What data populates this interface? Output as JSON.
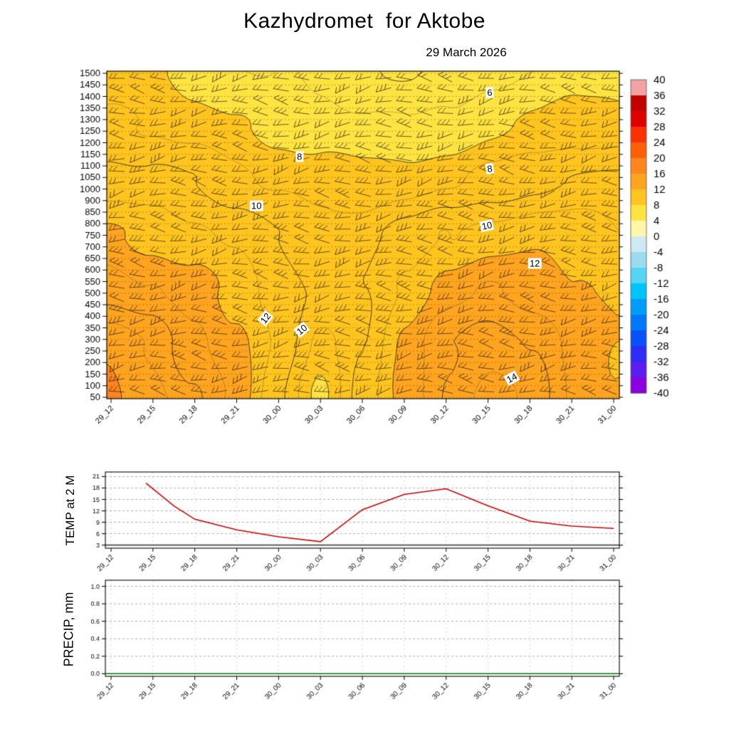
{
  "title": "Kazhydromet  for Aktobe",
  "subtitle": "29 March 2026",
  "chart_data": [
    {
      "type": "heatmap",
      "name": "wind-temperature-time-height-section",
      "x_ticklabels": [
        "29_12",
        "29_15",
        "29_18",
        "29_21",
        "30_00",
        "30_03",
        "30_06",
        "30_09",
        "30_12",
        "30_15",
        "30_18",
        "30_21",
        "31_00"
      ],
      "y_ticklabels": [
        "1500",
        "1450",
        "1400",
        "1350",
        "1300",
        "1250",
        "1200",
        "1150",
        "1100",
        "1050",
        "1000",
        "900",
        "850",
        "800",
        "750",
        "700",
        "650",
        "600",
        "550",
        "500",
        "450",
        "400",
        "350",
        "300",
        "250",
        "200",
        "150",
        "100",
        "50"
      ],
      "colorbar": {
        "ticks": [
          40,
          36,
          32,
          28,
          24,
          20,
          16,
          12,
          8,
          4,
          0,
          -4,
          -8,
          -12,
          -16,
          -20,
          -24,
          -28,
          -32,
          -36,
          -40
        ],
        "palette": [
          {
            "min": -40,
            "color": "#8a00e0"
          },
          {
            "min": -36,
            "color": "#5a1ef0"
          },
          {
            "min": -32,
            "color": "#2d2df5"
          },
          {
            "min": -28,
            "color": "#0a50fa"
          },
          {
            "min": -24,
            "color": "#0078fa"
          },
          {
            "min": -20,
            "color": "#009cfa"
          },
          {
            "min": -16,
            "color": "#00c3fa"
          },
          {
            "min": -12,
            "color": "#55d5f5"
          },
          {
            "min": -8,
            "color": "#9adcee"
          },
          {
            "min": -4,
            "color": "#cfe9f2"
          },
          {
            "min": 0,
            "color": "#fff6aa"
          },
          {
            "min": 4,
            "color": "#ffe341"
          },
          {
            "min": 8,
            "color": "#ffc41e"
          },
          {
            "min": 12,
            "color": "#ffa41e"
          },
          {
            "min": 16,
            "color": "#ff861e"
          },
          {
            "min": 20,
            "color": "#ff5f05"
          },
          {
            "min": 24,
            "color": "#fa3200"
          },
          {
            "min": 28,
            "color": "#e10000"
          },
          {
            "min": 32,
            "color": "#c30000"
          },
          {
            "min": 36,
            "color": "#f2a2a2"
          }
        ]
      },
      "contour_interval": 1,
      "labeled_contours": [
        6,
        8,
        10,
        12,
        14
      ],
      "contour_labels": [
        {
          "text": "6",
          "fx": 0.747,
          "fy": 0.065,
          "rot": 0
        },
        {
          "text": "8",
          "fx": 0.376,
          "fy": 0.26,
          "rot": 0
        },
        {
          "text": "8",
          "fx": 0.747,
          "fy": 0.298,
          "rot": -8
        },
        {
          "text": "10",
          "fx": 0.292,
          "fy": 0.41,
          "rot": 0
        },
        {
          "text": "10",
          "fx": 0.742,
          "fy": 0.472,
          "rot": -12
        },
        {
          "text": "12",
          "fx": 0.835,
          "fy": 0.587,
          "rot": 0
        },
        {
          "text": "12",
          "fx": 0.31,
          "fy": 0.755,
          "rot": -52
        },
        {
          "text": "10",
          "fx": 0.38,
          "fy": 0.79,
          "rot": -38
        },
        {
          "text": "14",
          "fx": 0.79,
          "fy": 0.936,
          "rot": -28
        }
      ],
      "grid_levels_m": [
        1500,
        1250,
        1000,
        750,
        500,
        250,
        50
      ],
      "grid_values": [
        [
          8.2,
          7.9,
          7.6,
          7.3,
          7.0,
          6.6,
          6.2,
          6.0,
          6.4,
          6.8,
          7.0,
          7.4,
          7.6
        ],
        [
          9.2,
          8.9,
          8.5,
          8.1,
          7.8,
          7.4,
          7.0,
          7.0,
          7.4,
          7.8,
          8.0,
          8.4,
          8.6
        ],
        [
          10.6,
          10.2,
          9.8,
          9.4,
          9.0,
          8.6,
          8.2,
          8.4,
          8.8,
          9.4,
          9.8,
          10.0,
          10.0
        ],
        [
          12.2,
          11.8,
          11.2,
          10.6,
          10.0,
          9.6,
          9.6,
          10.2,
          11.0,
          11.6,
          11.8,
          11.4,
          11.0
        ],
        [
          13.8,
          13.2,
          12.4,
          11.6,
          10.6,
          9.8,
          10.0,
          11.2,
          12.4,
          13.0,
          12.8,
          12.2,
          11.6
        ],
        [
          15.6,
          15.0,
          13.6,
          12.2,
          10.6,
          8.8,
          10.2,
          12.2,
          13.8,
          14.6,
          14.0,
          12.6,
          12.0
        ],
        [
          16.2,
          15.6,
          14.2,
          12.8,
          10.2,
          7.6,
          10.4,
          12.6,
          14.2,
          15.2,
          14.6,
          13.0,
          12.2
        ]
      ],
      "wind_barbs": {
        "style": "barb",
        "rows": 28,
        "cols": 25
      }
    },
    {
      "type": "line",
      "ylabel": "TEMP at 2 M",
      "x_ticklabels": [
        "29_12",
        "29_15",
        "29_18",
        "29_21",
        "30_00",
        "30_03",
        "30_06",
        "30_09",
        "30_12",
        "30_15",
        "30_18",
        "30_21",
        "31_00"
      ],
      "yticks": [
        3,
        6,
        9,
        12,
        15,
        18,
        21
      ],
      "ylim": [
        3,
        21
      ],
      "line_color": "#cc0000",
      "points": {
        "t_hours": [
          2.5,
          4.5,
          6,
          9,
          12,
          15,
          18,
          21,
          24,
          27,
          30,
          33,
          36
        ],
        "values": [
          19.3,
          13.3,
          9.8,
          7.0,
          5.2,
          3.9,
          12.3,
          16.3,
          17.8,
          13.3,
          9.3,
          8.0,
          7.4
        ]
      }
    },
    {
      "type": "line",
      "ylabel": "PRECIP, mm",
      "x_ticklabels": [
        "29_12",
        "29_15",
        "29_18",
        "29_21",
        "30_00",
        "30_03",
        "30_06",
        "30_09",
        "30_12",
        "30_15",
        "30_18",
        "30_21",
        "31_00"
      ],
      "ytick_labels": [
        "0.0",
        "0.2",
        "0.4",
        "0.6",
        "0.8",
        "1.0"
      ],
      "ylim": [
        0,
        1
      ],
      "line_color": "#007700",
      "values": [
        0,
        0,
        0,
        0,
        0,
        0,
        0,
        0,
        0,
        0,
        0,
        0,
        0
      ]
    }
  ]
}
